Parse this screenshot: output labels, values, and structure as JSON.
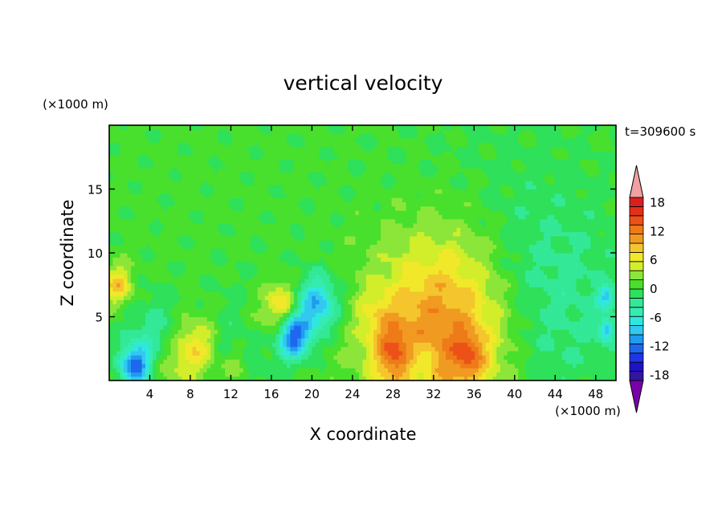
{
  "chart_data": {
    "type": "heatmap",
    "title": "vertical velocity",
    "xlabel": "X coordinate",
    "ylabel": "Z coordinate",
    "x_unit": "(×1000 m)",
    "y_unit": "(×1000 m)",
    "time_label": "t=309600 s",
    "xlim": [
      0,
      50
    ],
    "ylim": [
      0,
      20
    ],
    "x_ticks": [
      4,
      8,
      12,
      16,
      20,
      24,
      28,
      32,
      36,
      40,
      44,
      48
    ],
    "y_ticks": [
      5,
      10,
      15
    ],
    "grid": false,
    "colorbar": {
      "labels": [
        18,
        12,
        6,
        0,
        -6,
        -12,
        -18
      ],
      "min": -21,
      "max": 21,
      "extend": "both",
      "colors": [
        "#7a00a8",
        "#33159e",
        "#1f12c8",
        "#1f35e6",
        "#1e68ee",
        "#1f9bf0",
        "#33c8ef",
        "#2ee8e0",
        "#35ecb0",
        "#33e896",
        "#2ee05a",
        "#48e02c",
        "#8ce63a",
        "#d2ed2a",
        "#f2e82a",
        "#f4c52c",
        "#f09a22",
        "#ee7a18",
        "#ec5218",
        "#e43018",
        "#d82020",
        "#f0a0a0"
      ]
    },
    "features": [
      {
        "x": 33,
        "z": 4,
        "w": 6.8,
        "peak": 12
      },
      {
        "x": 35.5,
        "z": 2,
        "w": 1.6,
        "peak": 6
      },
      {
        "x": 8.5,
        "z": 2.6,
        "w": 2.2,
        "peak": 7
      },
      {
        "x": 6,
        "z": 1.2,
        "w": 2.0,
        "peak": 3
      },
      {
        "x": 28.2,
        "z": 2,
        "w": 2.0,
        "peak": 8
      },
      {
        "x": 26.5,
        "z": 5,
        "w": 2.0,
        "peak": 3
      },
      {
        "x": 17,
        "z": 6,
        "w": 1.6,
        "peak": 7
      },
      {
        "x": 15,
        "z": 4.5,
        "w": 2.5,
        "peak": 3
      },
      {
        "x": 0.8,
        "z": 7.5,
        "w": 1.4,
        "peak": 8
      },
      {
        "x": 12.5,
        "z": 1,
        "w": 1.2,
        "peak": 4
      },
      {
        "x": 18.2,
        "z": 3.5,
        "w": 1.6,
        "peak": -13
      },
      {
        "x": 20.5,
        "z": 6,
        "w": 2.0,
        "peak": -10
      },
      {
        "x": 2.5,
        "z": 1.2,
        "w": 1.5,
        "peak": -12
      },
      {
        "x": 4.5,
        "z": 3.5,
        "w": 2.8,
        "peak": -4
      },
      {
        "x": 13.5,
        "z": 3.2,
        "w": 4.0,
        "peak": -3
      },
      {
        "x": 30.3,
        "z": 1.5,
        "w": 1.6,
        "peak": -5
      },
      {
        "x": 43,
        "z": 6,
        "w": 7.0,
        "peak": -3
      },
      {
        "x": 49,
        "z": 6.5,
        "w": 0.8,
        "peak": -8
      },
      {
        "x": 49,
        "z": 4,
        "w": 0.8,
        "peak": -8
      },
      {
        "x": 38,
        "z": 10,
        "w": 12.0,
        "peak": -1.5
      }
    ]
  }
}
